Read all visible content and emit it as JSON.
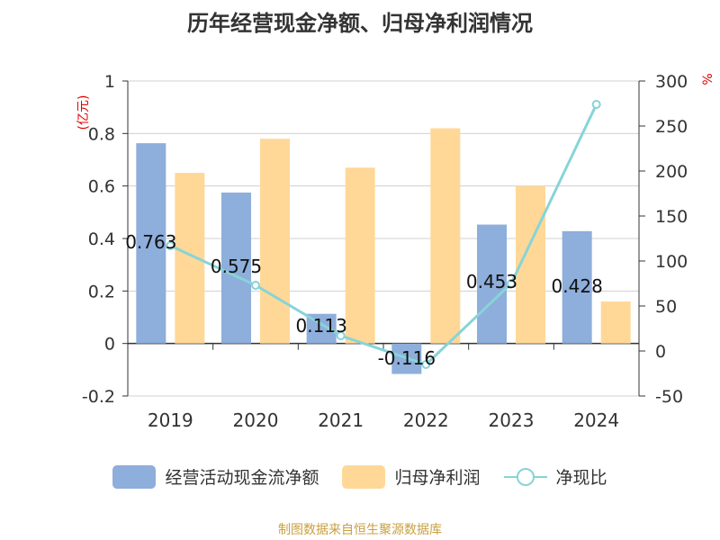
{
  "chart_data": {
    "type": "bar",
    "title": "历年经营现金净额、归母净利润情况",
    "y_left_unit": "(亿元)",
    "y_right_unit": "%",
    "categories": [
      "2019",
      "2020",
      "2021",
      "2022",
      "2023",
      "2024"
    ],
    "ylim_left": [
      -0.2,
      1
    ],
    "yticks_left": [
      "1",
      "0.8",
      "0.6",
      "0.4",
      "0.2",
      "0",
      "-0.2"
    ],
    "ylim_right": [
      -50,
      300
    ],
    "yticks_right": [
      "300",
      "250",
      "200",
      "150",
      "100",
      "50",
      "0",
      "-50"
    ],
    "series": [
      {
        "name": "经营活动现金流净额",
        "axis": "left",
        "type": "bar",
        "color": "#8eaedb",
        "values": [
          0.763,
          0.575,
          0.113,
          -0.116,
          0.453,
          0.428
        ],
        "labels": [
          "0.763",
          "0.575",
          "0.113",
          "-0.116",
          "0.453",
          "0.428"
        ]
      },
      {
        "name": "归母净利润",
        "axis": "left",
        "type": "bar",
        "color": "#ffd898",
        "values": [
          0.65,
          0.78,
          0.67,
          0.82,
          0.6,
          0.16
        ]
      },
      {
        "name": "净现比",
        "axis": "right",
        "type": "line",
        "color": "#87d4d8",
        "values": [
          117,
          73,
          17,
          -15,
          75,
          274
        ]
      }
    ],
    "grid": true
  },
  "source": "制图数据来自恒生聚源数据库"
}
